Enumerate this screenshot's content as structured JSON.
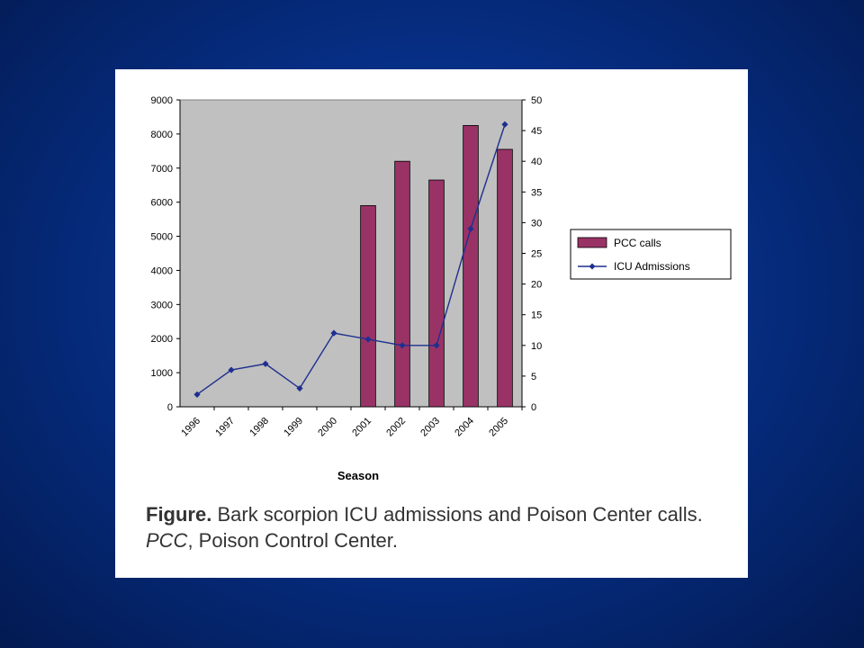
{
  "chart_data": {
    "type": "bar",
    "categories": [
      "1996",
      "1997",
      "1998",
      "1999",
      "2000",
      "2001",
      "2002",
      "2003",
      "2004",
      "2005"
    ],
    "series": [
      {
        "name": "PCC calls",
        "type": "bar",
        "axis": "left",
        "values": [
          null,
          null,
          null,
          null,
          null,
          5900,
          7200,
          6650,
          8250,
          7550
        ],
        "color": "#993366"
      },
      {
        "name": "ICU Admissions",
        "type": "line",
        "axis": "right",
        "values": [
          2,
          6,
          7,
          3,
          12,
          11,
          10,
          10,
          29,
          46
        ],
        "color": "#1f2f8f"
      }
    ],
    "xlabel": "Season",
    "ylabel": "",
    "ylim": [
      0,
      9000
    ],
    "yticks": [
      "0",
      "1000",
      "2000",
      "3000",
      "4000",
      "5000",
      "6000",
      "7000",
      "8000",
      "9000"
    ],
    "y2lim": [
      0,
      50
    ],
    "y2ticks": [
      "0",
      "5",
      "10",
      "15",
      "20",
      "25",
      "30",
      "35",
      "40",
      "45",
      "50"
    ],
    "plot_background": "#c0c0c0",
    "legend_position": "right"
  },
  "caption": {
    "label": "Figure.",
    "text1": " Bark scorpion ICU admissions and Poison Center calls. ",
    "abbrev": "PCC",
    "text2": ", Poison Control Center."
  },
  "colors": {
    "background": "#062f86",
    "card": "#ffffff",
    "bar": "#993366",
    "line": "#1f2f8f"
  }
}
